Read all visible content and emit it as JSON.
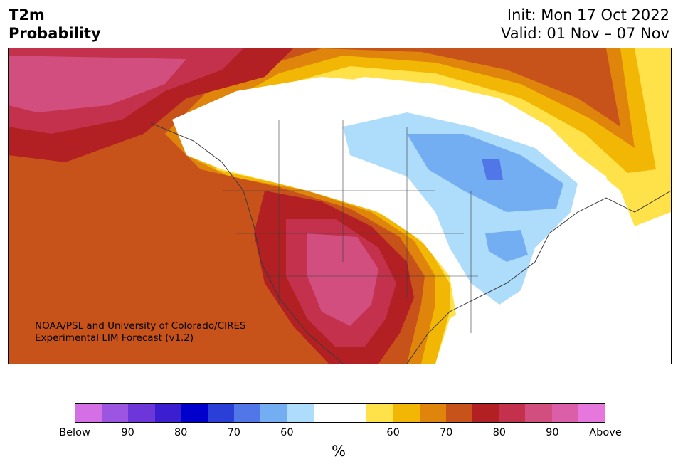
{
  "header": {
    "title_line1": "T2m",
    "title_line2": "Probability",
    "init": "Init: Mon 17 Oct 2022",
    "valid": "Valid: 01 Nov – 07 Nov"
  },
  "credit": {
    "line1": "NOAA/PSL and University of Colorado/CIRES",
    "line2": "Experimental LIM Forecast (v1.2)"
  },
  "colorbar": {
    "unit": "%",
    "colors": [
      "#d46fe6",
      "#9b55e0",
      "#6c36d8",
      "#3a1ed0",
      "#0000cc",
      "#2a3ed8",
      "#5076e8",
      "#74aef2",
      "#aedcfb",
      "#ffffff",
      "#ffffff",
      "#ffe24a",
      "#f2b705",
      "#e0850b",
      "#c8531a",
      "#b32023",
      "#c3314d",
      "#d24e7e",
      "#db5ea8",
      "#e677dc"
    ],
    "labels": [
      "Below",
      "90",
      "80",
      "70",
      "60",
      "60",
      "70",
      "80",
      "90",
      "Above"
    ]
  },
  "palette": {
    "below_light": "#aedcfb",
    "below_mid": "#74aef2",
    "below_deep": "#5076e8",
    "above_yellow": "#ffe24a",
    "above_gold": "#f2b705",
    "above_orange": "#e0850b",
    "above_rust": "#c8531a",
    "above_red": "#b32023",
    "above_crimson": "#c3314d",
    "above_pink": "#d24e7e"
  }
}
